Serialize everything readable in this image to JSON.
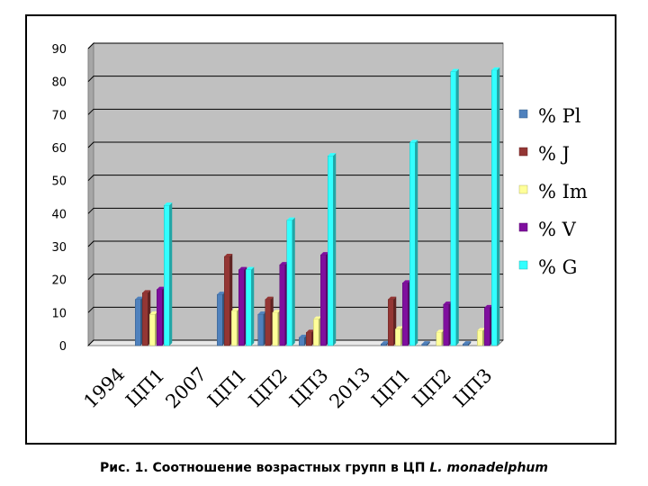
{
  "caption": {
    "prefix": "Рис. 1. Соотношение возрастных групп в ЦП",
    "species": "L. monadelphum"
  },
  "chart_data": {
    "type": "bar",
    "title": "",
    "xlabel": "",
    "ylabel": "",
    "ylim": [
      0,
      90
    ],
    "yticks": [
      0,
      10,
      20,
      30,
      40,
      50,
      60,
      70,
      80,
      90
    ],
    "grid": true,
    "legend_position": "right",
    "categories": [
      "1994",
      "ЦП1",
      "2007",
      "ЦП1",
      "ЦП2",
      "ЦП3",
      "2013",
      "ЦП1",
      "ЦП2",
      "ЦП3"
    ],
    "series": [
      {
        "name": "% Pl",
        "color": "#4f81bd",
        "values": [
          null,
          14,
          null,
          15.5,
          9.5,
          2.5,
          null,
          0.5,
          0.5,
          0.5
        ]
      },
      {
        "name": "% J",
        "color": "#943634",
        "values": [
          null,
          16,
          null,
          27,
          14,
          4,
          null,
          14,
          null,
          null
        ]
      },
      {
        "name": "% Im",
        "color": "#ffff99",
        "values": [
          null,
          9.5,
          null,
          10.5,
          10,
          8,
          null,
          5,
          4,
          4.5
        ]
      },
      {
        "name": "% V",
        "color": "#7f0f9e",
        "values": [
          null,
          17,
          null,
          23,
          24.5,
          27.5,
          null,
          19,
          12.5,
          11.5
        ]
      },
      {
        "name": "% G",
        "color": "#33ffff",
        "values": [
          null,
          42.5,
          null,
          23,
          38,
          57.5,
          null,
          61.5,
          83,
          83.5
        ]
      }
    ]
  }
}
